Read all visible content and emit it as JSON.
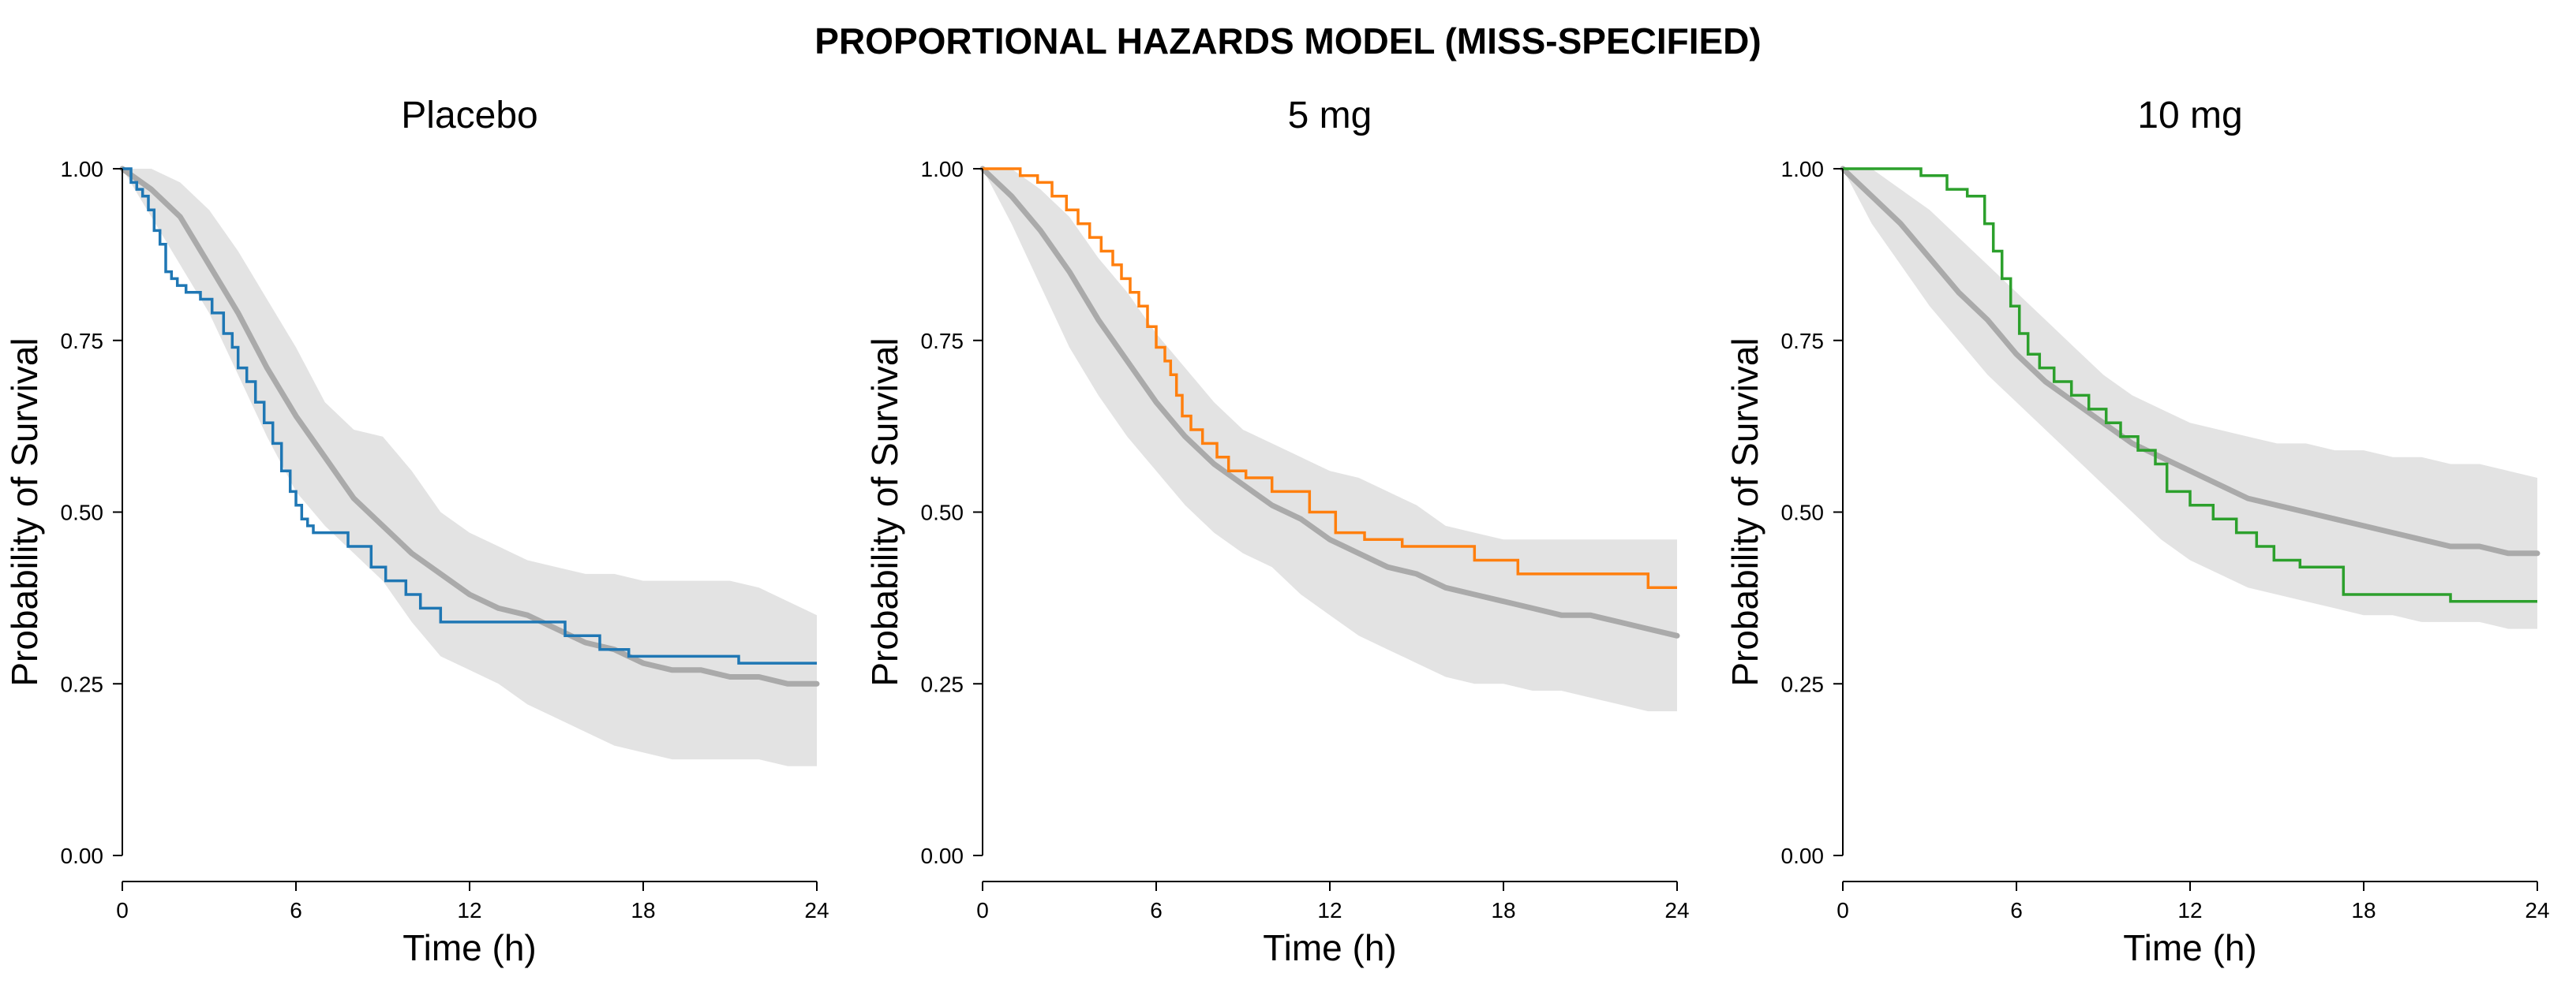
{
  "title": "PROPORTIONAL HAZARDS MODEL (MISS-SPECIFIED)",
  "chart_data": [
    {
      "type": "line",
      "title": "Placebo",
      "xlabel": "Time (h)",
      "ylabel": "Probability of Survival",
      "xlim": [
        0,
        24
      ],
      "ylim": [
        0,
        1
      ],
      "xticks": [
        "0",
        "6",
        "12",
        "18",
        "24"
      ],
      "yticks": [
        "0.00",
        "0.25",
        "0.50",
        "0.75",
        "1.00"
      ],
      "grid": false,
      "observed_color": "#1f77b4",
      "prediction_color": "#aaaaaa",
      "band_color": "#e3e3e3",
      "observed_km": {
        "x": [
          0,
          0.3,
          0.5,
          0.7,
          0.9,
          1.1,
          1.3,
          1.5,
          1.7,
          1.9,
          2.2,
          2.7,
          3.1,
          3.5,
          3.8,
          4.0,
          4.3,
          4.6,
          4.9,
          5.2,
          5.5,
          5.8,
          6.0,
          6.2,
          6.4,
          6.6,
          7.0,
          7.8,
          8.6,
          9.1,
          9.8,
          10.3,
          11.0,
          13.0,
          15.3,
          16.5,
          17.5,
          21.3,
          24
        ],
        "y": [
          1.0,
          0.98,
          0.97,
          0.96,
          0.94,
          0.91,
          0.89,
          0.85,
          0.84,
          0.83,
          0.82,
          0.81,
          0.79,
          0.76,
          0.74,
          0.71,
          0.69,
          0.66,
          0.63,
          0.6,
          0.56,
          0.53,
          0.51,
          0.49,
          0.48,
          0.47,
          0.47,
          0.45,
          0.42,
          0.4,
          0.38,
          0.36,
          0.34,
          0.34,
          0.32,
          0.3,
          0.29,
          0.28,
          0.28
        ]
      },
      "predicted_median": {
        "x": [
          0,
          1,
          2,
          3,
          4,
          5,
          6,
          7,
          8,
          9,
          10,
          11,
          12,
          13,
          14,
          15,
          16,
          17,
          18,
          19,
          20,
          21,
          22,
          23,
          24
        ],
        "y": [
          1.0,
          0.97,
          0.93,
          0.86,
          0.79,
          0.71,
          0.64,
          0.58,
          0.52,
          0.48,
          0.44,
          0.41,
          0.38,
          0.36,
          0.35,
          0.33,
          0.31,
          0.3,
          0.28,
          0.27,
          0.27,
          0.26,
          0.26,
          0.25,
          0.25
        ]
      },
      "prediction_interval_upper": {
        "x": [
          0,
          1,
          2,
          3,
          4,
          5,
          6,
          7,
          8,
          9,
          10,
          11,
          12,
          13,
          14,
          15,
          16,
          17,
          18,
          19,
          20,
          21,
          22,
          23,
          24
        ],
        "y": [
          1.0,
          1.0,
          0.98,
          0.94,
          0.88,
          0.81,
          0.74,
          0.66,
          0.62,
          0.61,
          0.56,
          0.5,
          0.47,
          0.45,
          0.43,
          0.42,
          0.41,
          0.41,
          0.4,
          0.4,
          0.4,
          0.4,
          0.39,
          0.37,
          0.35
        ]
      },
      "prediction_interval_lower": {
        "x": [
          0,
          1,
          2,
          3,
          4,
          5,
          6,
          7,
          8,
          9,
          10,
          11,
          12,
          13,
          14,
          15,
          16,
          17,
          18,
          19,
          20,
          21,
          22,
          23,
          24
        ],
        "y": [
          1.0,
          0.93,
          0.86,
          0.79,
          0.7,
          0.61,
          0.53,
          0.48,
          0.44,
          0.4,
          0.34,
          0.29,
          0.27,
          0.25,
          0.22,
          0.2,
          0.18,
          0.16,
          0.15,
          0.14,
          0.14,
          0.14,
          0.14,
          0.13,
          0.13
        ]
      }
    },
    {
      "type": "line",
      "title": "5 mg",
      "xlabel": "Time (h)",
      "ylabel": "Probability of Survival",
      "xlim": [
        0,
        24
      ],
      "ylim": [
        0,
        1
      ],
      "xticks": [
        "0",
        "6",
        "12",
        "18",
        "24"
      ],
      "yticks": [
        "0.00",
        "0.25",
        "0.50",
        "0.75",
        "1.00"
      ],
      "grid": false,
      "observed_color": "#ff7f0e",
      "prediction_color": "#aaaaaa",
      "band_color": "#e3e3e3",
      "observed_km": {
        "x": [
          0,
          1.3,
          1.9,
          2.4,
          2.9,
          3.3,
          3.7,
          4.1,
          4.5,
          4.8,
          5.1,
          5.4,
          5.7,
          6.0,
          6.3,
          6.5,
          6.7,
          6.9,
          7.2,
          7.6,
          8.1,
          8.5,
          9.1,
          10.0,
          11.3,
          12.2,
          13.2,
          14.5,
          17.0,
          18.5,
          23.0,
          24
        ],
        "y": [
          1.0,
          0.99,
          0.98,
          0.96,
          0.94,
          0.92,
          0.9,
          0.88,
          0.86,
          0.84,
          0.82,
          0.8,
          0.77,
          0.74,
          0.72,
          0.7,
          0.67,
          0.64,
          0.62,
          0.6,
          0.58,
          0.56,
          0.55,
          0.53,
          0.5,
          0.47,
          0.46,
          0.45,
          0.43,
          0.41,
          0.39,
          0.39
        ]
      },
      "predicted_median": {
        "x": [
          0,
          1,
          2,
          3,
          4,
          5,
          6,
          7,
          8,
          9,
          10,
          11,
          12,
          13,
          14,
          15,
          16,
          17,
          18,
          19,
          20,
          21,
          22,
          23,
          24
        ],
        "y": [
          1.0,
          0.96,
          0.91,
          0.85,
          0.78,
          0.72,
          0.66,
          0.61,
          0.57,
          0.54,
          0.51,
          0.49,
          0.46,
          0.44,
          0.42,
          0.41,
          0.39,
          0.38,
          0.37,
          0.36,
          0.35,
          0.35,
          0.34,
          0.33,
          0.32
        ]
      },
      "prediction_interval_upper": {
        "x": [
          0,
          1,
          2,
          3,
          4,
          5,
          6,
          7,
          8,
          9,
          10,
          11,
          12,
          13,
          14,
          15,
          16,
          17,
          18,
          19,
          20,
          21,
          22,
          23,
          24
        ],
        "y": [
          1.0,
          1.0,
          0.97,
          0.93,
          0.87,
          0.82,
          0.76,
          0.71,
          0.66,
          0.62,
          0.6,
          0.58,
          0.56,
          0.55,
          0.53,
          0.51,
          0.48,
          0.47,
          0.46,
          0.46,
          0.46,
          0.46,
          0.46,
          0.46,
          0.46
        ]
      },
      "prediction_interval_lower": {
        "x": [
          0,
          1,
          2,
          3,
          4,
          5,
          6,
          7,
          8,
          9,
          10,
          11,
          12,
          13,
          14,
          15,
          16,
          17,
          18,
          19,
          20,
          21,
          22,
          23,
          24
        ],
        "y": [
          1.0,
          0.92,
          0.83,
          0.74,
          0.67,
          0.61,
          0.56,
          0.51,
          0.47,
          0.44,
          0.42,
          0.38,
          0.35,
          0.32,
          0.3,
          0.28,
          0.26,
          0.25,
          0.25,
          0.24,
          0.24,
          0.23,
          0.22,
          0.21,
          0.21
        ]
      }
    },
    {
      "type": "line",
      "title": "10 mg",
      "xlabel": "Time (h)",
      "ylabel": "Probability of Survival",
      "xlim": [
        0,
        24
      ],
      "ylim": [
        0,
        1
      ],
      "xticks": [
        "0",
        "6",
        "12",
        "18",
        "24"
      ],
      "yticks": [
        "0.00",
        "0.25",
        "0.50",
        "0.75",
        "1.00"
      ],
      "grid": false,
      "observed_color": "#2ca02c",
      "prediction_color": "#aaaaaa",
      "band_color": "#e3e3e3",
      "observed_km": {
        "x": [
          0,
          2.7,
          3.6,
          4.3,
          4.9,
          5.2,
          5.5,
          5.8,
          6.1,
          6.4,
          6.8,
          7.3,
          7.9,
          8.5,
          9.1,
          9.6,
          10.2,
          10.8,
          11.2,
          12.0,
          12.8,
          13.6,
          14.3,
          14.9,
          15.8,
          17.3,
          21.0,
          24
        ],
        "y": [
          1.0,
          0.99,
          0.97,
          0.96,
          0.92,
          0.88,
          0.84,
          0.8,
          0.76,
          0.73,
          0.71,
          0.69,
          0.67,
          0.65,
          0.63,
          0.61,
          0.59,
          0.57,
          0.53,
          0.51,
          0.49,
          0.47,
          0.45,
          0.43,
          0.42,
          0.38,
          0.37,
          0.37
        ]
      },
      "predicted_median": {
        "x": [
          0,
          1,
          2,
          3,
          4,
          5,
          6,
          7,
          8,
          9,
          10,
          11,
          12,
          13,
          14,
          15,
          16,
          17,
          18,
          19,
          20,
          21,
          22,
          23,
          24
        ],
        "y": [
          1.0,
          0.96,
          0.92,
          0.87,
          0.82,
          0.78,
          0.73,
          0.69,
          0.66,
          0.63,
          0.6,
          0.58,
          0.56,
          0.54,
          0.52,
          0.51,
          0.5,
          0.49,
          0.48,
          0.47,
          0.46,
          0.45,
          0.45,
          0.44,
          0.44
        ]
      },
      "prediction_interval_upper": {
        "x": [
          0,
          1,
          2,
          3,
          4,
          5,
          6,
          7,
          8,
          9,
          10,
          11,
          12,
          13,
          14,
          15,
          16,
          17,
          18,
          19,
          20,
          21,
          22,
          23,
          24
        ],
        "y": [
          1.0,
          1.0,
          0.97,
          0.94,
          0.9,
          0.86,
          0.82,
          0.78,
          0.74,
          0.7,
          0.67,
          0.65,
          0.63,
          0.62,
          0.61,
          0.6,
          0.6,
          0.59,
          0.59,
          0.58,
          0.58,
          0.57,
          0.57,
          0.56,
          0.55
        ]
      },
      "prediction_interval_lower": {
        "x": [
          0,
          1,
          2,
          3,
          4,
          5,
          6,
          7,
          8,
          9,
          10,
          11,
          12,
          13,
          14,
          15,
          16,
          17,
          18,
          19,
          20,
          21,
          22,
          23,
          24
        ],
        "y": [
          1.0,
          0.92,
          0.86,
          0.8,
          0.75,
          0.7,
          0.66,
          0.62,
          0.58,
          0.54,
          0.5,
          0.46,
          0.43,
          0.41,
          0.39,
          0.38,
          0.37,
          0.36,
          0.35,
          0.35,
          0.34,
          0.34,
          0.34,
          0.33,
          0.33
        ]
      }
    }
  ]
}
